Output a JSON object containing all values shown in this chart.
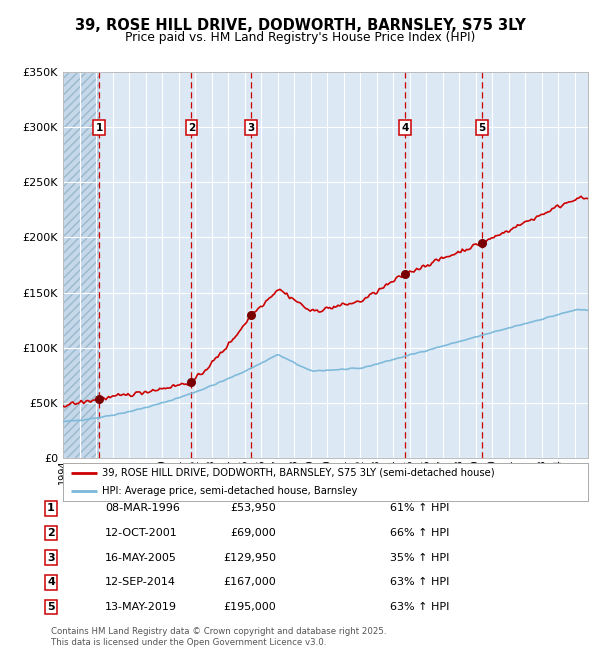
{
  "title": "39, ROSE HILL DRIVE, DODWORTH, BARNSLEY, S75 3LY",
  "subtitle": "Price paid vs. HM Land Registry's House Price Index (HPI)",
  "ylim": [
    0,
    350000
  ],
  "yticks": [
    0,
    50000,
    100000,
    150000,
    200000,
    250000,
    300000,
    350000
  ],
  "xlim_start": 1994.0,
  "xlim_end": 2025.8,
  "bg_color": "#dce9f5",
  "grid_color": "#ffffff",
  "red_line_color": "#cc0000",
  "blue_line_color": "#7ab8d9",
  "dashed_line_color": "#cc0000",
  "sale_marker_color": "#7a0000",
  "transactions": [
    {
      "num": 1,
      "date_label": "08-MAR-1996",
      "date_x": 1996.19,
      "price": 53950,
      "pct": "61%",
      "direction": "↑"
    },
    {
      "num": 2,
      "date_label": "12-OCT-2001",
      "date_x": 2001.78,
      "price": 69000,
      "pct": "66%",
      "direction": "↑"
    },
    {
      "num": 3,
      "date_label": "16-MAY-2005",
      "date_x": 2005.37,
      "price": 129950,
      "pct": "35%",
      "direction": "↑"
    },
    {
      "num": 4,
      "date_label": "12-SEP-2014",
      "date_x": 2014.7,
      "price": 167000,
      "pct": "63%",
      "direction": "↑"
    },
    {
      "num": 5,
      "date_label": "13-MAY-2019",
      "date_x": 2019.36,
      "price": 195000,
      "pct": "63%",
      "direction": "↑"
    }
  ],
  "legend_line1": "39, ROSE HILL DRIVE, DODWORTH, BARNSLEY, S75 3LY (semi-detached house)",
  "legend_line2": "HPI: Average price, semi-detached house, Barnsley",
  "footnote": "Contains HM Land Registry data © Crown copyright and database right 2025.\nThis data is licensed under the Open Government Licence v3.0.",
  "table_rows": [
    [
      "1",
      "08-MAR-1996",
      "£53,950",
      "61% ↑ HPI"
    ],
    [
      "2",
      "12-OCT-2001",
      "£69,000",
      "66% ↑ HPI"
    ],
    [
      "3",
      "16-MAY-2005",
      "£129,950",
      "35% ↑ HPI"
    ],
    [
      "4",
      "12-SEP-2014",
      "£167,000",
      "63% ↑ HPI"
    ],
    [
      "5",
      "13-MAY-2019",
      "£195,000",
      "63% ↑ HPI"
    ]
  ]
}
